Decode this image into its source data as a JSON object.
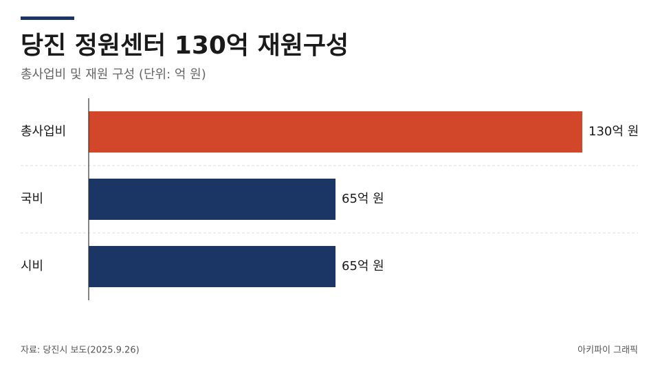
{
  "chart_data": {
    "type": "bar",
    "orientation": "horizontal",
    "title": "당진 정원센터 130억 재원구성",
    "subtitle": "총사업비 및 재원 구성 (단위: 억 원)",
    "categories": [
      "총사업비",
      "국비",
      "시비"
    ],
    "values": [
      130,
      65,
      65
    ],
    "value_labels": [
      "130억 원",
      "65억 원",
      "65억 원"
    ],
    "colors": [
      "#d2462a",
      "#1b3564",
      "#1b3564"
    ],
    "source": "자료: 당진시 보도(2025.9.26)",
    "credit": "아키파이 그래픽"
  }
}
